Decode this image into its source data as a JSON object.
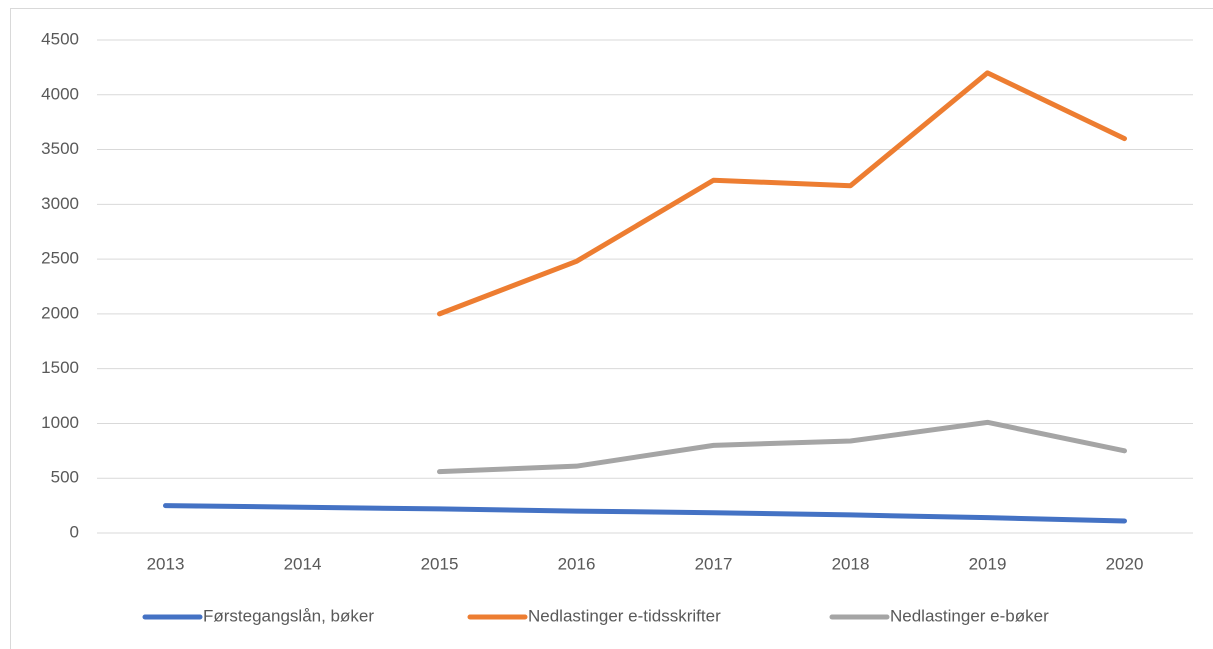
{
  "chart_data": {
    "type": "line",
    "categories": [
      "2013",
      "2014",
      "2015",
      "2016",
      "2017",
      "2018",
      "2019",
      "2020"
    ],
    "series": [
      {
        "name": "Førstegangslån, bøker",
        "color": "#4472c4",
        "values": [
          250,
          235,
          220,
          200,
          185,
          165,
          140,
          110
        ]
      },
      {
        "name": "Nedlastinger e-tidsskrifter",
        "color": "#ed7d31",
        "values": [
          null,
          null,
          2000,
          2480,
          3220,
          3170,
          4200,
          3600
        ]
      },
      {
        "name": "Nedlastinger e-bøker",
        "color": "#a5a5a5",
        "values": [
          null,
          null,
          560,
          610,
          800,
          840,
          1010,
          750
        ]
      }
    ],
    "ylim": [
      0,
      4500
    ],
    "yticks": [
      0,
      500,
      1000,
      1500,
      2000,
      2500,
      3000,
      3500,
      4000,
      4500
    ],
    "grid": true,
    "legend": "bottom"
  }
}
